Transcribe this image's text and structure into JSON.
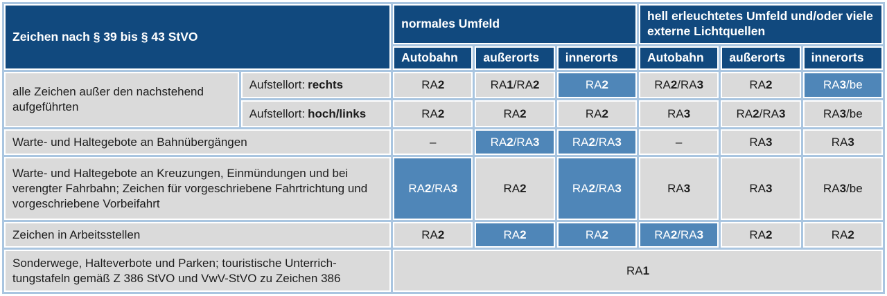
{
  "colors": {
    "header_blue": "#11497e",
    "highlight_blue": "#4f86b8",
    "cell_gray": "#dadada",
    "grid_blue": "#a9c5e0",
    "text_dark": "#1c1c1c"
  },
  "header": {
    "col_label": "Zeichen nach § 39 bis § 43 StVO",
    "group1": "normales Umfeld",
    "group2": "hell erleuchtetes Umfeld und/oder viele externe Lichtquellen",
    "subcols": [
      "Autobahn",
      "außerorts",
      "innerorts",
      "Autobahn",
      "außerorts",
      "innerorts"
    ]
  },
  "rows": [
    {
      "label": "alle Zeichen außer den nachstehend aufgeführten",
      "aufstellort_prefix": "Aufstellort:",
      "aufstellort_value": "rechts",
      "cells": [
        "RA2",
        "RA1/RA2",
        "RA2",
        "RA2/RA3",
        "RA2",
        "RA3/be"
      ]
    },
    {
      "aufstellort_prefix": "Aufstellort:",
      "aufstellort_value": "hoch/links",
      "cells": [
        "RA2",
        "RA2",
        "RA2",
        "RA3",
        "RA2/RA3",
        "RA3/be"
      ]
    },
    {
      "label": "Warte- und Haltegebote an Bahnübergängen",
      "cells": [
        "–",
        "RA2/RA3",
        "RA2/RA3",
        "–",
        "RA3",
        "RA3"
      ]
    },
    {
      "label": "Warte- und Haltegebote an Kreuzungen, Einmündungen und bei verengter Fahrbahn; Zeichen für vorgeschriebene Fahrtrichtung und vorgeschriebene Vorbeifahrt",
      "cells": [
        "RA2/RA3",
        "RA2",
        "RA2/RA3",
        "RA3",
        "RA3",
        "RA3/be"
      ]
    },
    {
      "label": "Zeichen in Arbeitsstellen",
      "cells": [
        "RA2",
        "RA2",
        "RA2",
        "RA2/RA3",
        "RA2",
        "RA2"
      ]
    },
    {
      "label_line1": "Sonderwege, Halteverbote und Parken; touristische Unterrich-",
      "label_line2": "tungstafeln gemäß Z 386 StVO und VwV-StVO zu Zeichen 386",
      "cells": [
        "RA1"
      ]
    }
  ]
}
